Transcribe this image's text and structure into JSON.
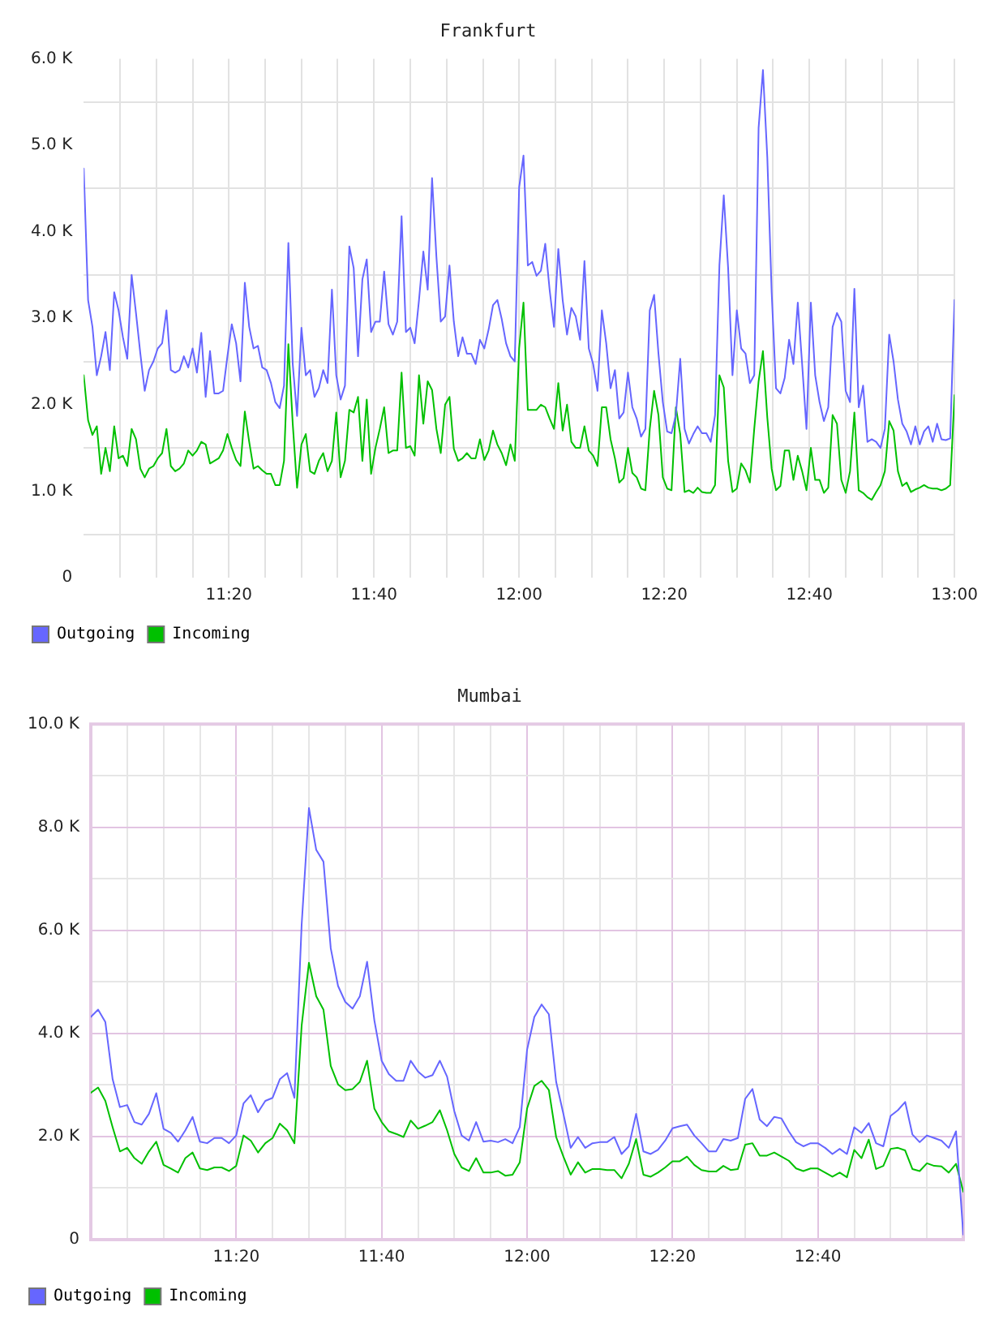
{
  "chart_data": [
    {
      "type": "line",
      "title": "Frankfurt",
      "legend": "bottom left",
      "grid": true,
      "marker": "none",
      "line_style": "solid",
      "xlim": [
        11,
        13
      ],
      "ylim": [
        0,
        6000
      ],
      "xticks": [
        {
          "value": 11.0833,
          "label": null
        },
        {
          "value": 11.1667,
          "label": null
        },
        {
          "value": 11.25,
          "label": null
        },
        {
          "value": 11.3333,
          "label": "11:20"
        },
        {
          "value": 11.4167,
          "label": null
        },
        {
          "value": 11.5,
          "label": null
        },
        {
          "value": 11.5833,
          "label": null
        },
        {
          "value": 11.6667,
          "label": "11:40"
        },
        {
          "value": 11.75,
          "label": null
        },
        {
          "value": 11.8333,
          "label": null
        },
        {
          "value": 11.9167,
          "label": null
        },
        {
          "value": 12,
          "label": "12:00"
        },
        {
          "value": 12.0833,
          "label": null
        },
        {
          "value": 12.1667,
          "label": null
        },
        {
          "value": 12.25,
          "label": null
        },
        {
          "value": 12.3333,
          "label": "12:20"
        },
        {
          "value": 12.4167,
          "label": null
        },
        {
          "value": 12.5,
          "label": null
        },
        {
          "value": 12.5833,
          "label": null
        },
        {
          "value": 12.6667,
          "label": "12:40"
        },
        {
          "value": 12.75,
          "label": null
        },
        {
          "value": 12.8333,
          "label": null
        },
        {
          "value": 12.9167,
          "label": null
        },
        {
          "value": 13,
          "label": "13:00"
        }
      ],
      "yticks": [
        0,
        {
          "value": 500,
          "label": null
        },
        {
          "value": 1000,
          "label": "1.0 K"
        },
        {
          "value": 1500,
          "label": null
        },
        {
          "value": 2000,
          "label": "2.0 K"
        },
        {
          "value": 2500,
          "label": null
        },
        {
          "value": 3000,
          "label": "3.0 K"
        },
        {
          "value": 3500,
          "label": null
        },
        {
          "value": 4000,
          "label": "4.0 K"
        },
        {
          "value": 4500,
          "label": null
        },
        {
          "value": 5000,
          "label": "5.0 K"
        },
        {
          "value": 5500,
          "label": null
        },
        {
          "value": 6000,
          "label": "6.0 K"
        }
      ],
      "x": [
        11,
        11.01,
        11.02,
        11.03,
        11.04,
        11.05,
        11.06,
        11.07,
        11.08,
        11.09,
        11.1,
        11.11,
        11.12,
        11.13,
        11.14,
        11.15,
        11.16,
        11.17,
        11.18,
        11.19,
        11.2,
        11.21,
        11.22,
        11.23,
        11.24,
        11.25,
        11.26,
        11.27,
        11.28,
        11.29,
        11.3,
        11.31,
        11.32,
        11.33,
        11.34,
        11.35,
        11.36,
        11.37,
        11.38,
        11.39,
        11.4,
        11.41,
        11.42,
        11.43,
        11.44,
        11.45,
        11.46,
        11.47,
        11.48,
        11.49,
        11.5,
        11.51,
        11.52,
        11.53,
        11.54,
        11.55,
        11.56,
        11.57,
        11.58,
        11.59,
        11.6,
        11.61,
        11.62,
        11.63,
        11.64,
        11.65,
        11.66,
        11.67,
        11.68,
        11.69,
        11.7,
        11.71,
        11.72,
        11.73,
        11.74,
        11.75,
        11.76,
        11.77,
        11.78,
        11.79,
        11.8,
        11.81,
        11.82,
        11.83,
        11.84,
        11.85,
        11.86,
        11.87,
        11.88,
        11.89,
        11.9,
        11.91,
        11.92,
        11.93,
        11.94,
        11.95,
        11.96,
        11.97,
        11.98,
        11.99,
        12,
        12.01,
        12.02,
        12.03,
        12.04,
        12.05,
        12.06,
        12.07,
        12.08,
        12.09,
        12.1,
        12.11,
        12.12,
        12.13,
        12.14,
        12.15,
        12.16,
        12.17,
        12.18,
        12.19,
        12.2,
        12.21,
        12.22,
        12.23,
        12.24,
        12.25,
        12.26,
        12.27,
        12.28,
        12.29,
        12.3,
        12.31,
        12.32,
        12.33,
        12.34,
        12.35,
        12.36,
        12.37,
        12.38,
        12.39,
        12.4,
        12.41,
        12.42,
        12.43,
        12.44,
        12.45,
        12.46,
        12.47,
        12.48,
        12.49,
        12.5,
        12.51,
        12.52,
        12.53,
        12.54,
        12.55,
        12.56,
        12.57,
        12.58,
        12.59,
        12.6,
        12.61,
        12.62,
        12.63,
        12.64,
        12.65,
        12.66,
        12.67,
        12.68,
        12.69,
        12.7,
        12.71,
        12.72,
        12.73,
        12.74,
        12.75,
        12.76,
        12.77,
        12.78,
        12.79,
        12.8,
        12.81,
        12.82,
        12.83,
        12.84,
        12.85,
        12.86,
        12.87,
        12.88,
        12.89,
        12.9,
        12.91,
        12.92,
        12.93,
        12.94,
        12.95,
        12.96,
        12.97,
        12.98,
        12.99,
        13
      ],
      "series": [
        {
          "name": "Outgoing",
          "color": "#6666ff",
          "values": [
            4730,
            3210,
            2900,
            2340,
            2560,
            2840,
            2400,
            3300,
            3090,
            2780,
            2530,
            3500,
            3060,
            2590,
            2160,
            2400,
            2500,
            2650,
            2710,
            3090,
            2400,
            2370,
            2400,
            2560,
            2430,
            2650,
            2370,
            2830,
            2090,
            2620,
            2130,
            2130,
            2160,
            2560,
            2930,
            2710,
            2270,
            3410,
            2900,
            2650,
            2680,
            2430,
            2400,
            2250,
            2030,
            1960,
            2220,
            3870,
            2470,
            1870,
            2890,
            2340,
            2400,
            2090,
            2190,
            2400,
            2250,
            3330,
            2340,
            2060,
            2220,
            3830,
            3580,
            2560,
            3450,
            3680,
            2840,
            2960,
            2960,
            3540,
            2930,
            2810,
            2960,
            4180,
            2840,
            2890,
            2710,
            3210,
            3770,
            3330,
            4620,
            3710,
            2960,
            3020,
            3610,
            2960,
            2560,
            2780,
            2590,
            2590,
            2470,
            2750,
            2650,
            2870,
            3150,
            3210,
            2990,
            2710,
            2560,
            2500,
            4510,
            4880,
            3610,
            3650,
            3490,
            3550,
            3860,
            3330,
            2900,
            3800,
            3210,
            2810,
            3120,
            3020,
            2750,
            3660,
            2650,
            2470,
            2160,
            3090,
            2710,
            2190,
            2400,
            1840,
            1910,
            2370,
            1970,
            1840,
            1630,
            1720,
            3090,
            3270,
            2590,
            2030,
            1690,
            1670,
            1880,
            2530,
            1720,
            1550,
            1660,
            1750,
            1670,
            1670,
            1570,
            1880,
            3610,
            4420,
            3580,
            2340,
            3090,
            2650,
            2590,
            2250,
            2340,
            5200,
            5870,
            4860,
            3300,
            2190,
            2130,
            2310,
            2750,
            2470,
            3180,
            2470,
            1720,
            3180,
            2340,
            2030,
            1810,
            1970,
            2900,
            3060,
            2960,
            2160,
            2030,
            3340,
            1970,
            2220,
            1570,
            1600,
            1570,
            1500,
            1720,
            2810,
            2500,
            2060,
            1780,
            1690,
            1540,
            1750,
            1540,
            1690,
            1750,
            1570,
            1780,
            1600,
            1590,
            1610,
            3210
          ]
        },
        {
          "name": "Incoming",
          "color": "#00c000",
          "values": [
            2340,
            1820,
            1650,
            1750,
            1200,
            1500,
            1230,
            1750,
            1380,
            1410,
            1290,
            1720,
            1600,
            1260,
            1160,
            1260,
            1290,
            1380,
            1440,
            1720,
            1290,
            1230,
            1260,
            1320,
            1470,
            1410,
            1470,
            1570,
            1540,
            1320,
            1350,
            1380,
            1470,
            1660,
            1500,
            1360,
            1290,
            1920,
            1570,
            1260,
            1290,
            1240,
            1200,
            1200,
            1070,
            1070,
            1350,
            2700,
            1780,
            1040,
            1540,
            1660,
            1230,
            1200,
            1350,
            1440,
            1230,
            1350,
            1910,
            1160,
            1350,
            1940,
            1910,
            2090,
            1350,
            2060,
            1200,
            1500,
            1720,
            1970,
            1440,
            1470,
            1470,
            2370,
            1500,
            1520,
            1410,
            2340,
            1780,
            2270,
            2170,
            1720,
            1440,
            2000,
            2090,
            1490,
            1350,
            1380,
            1440,
            1380,
            1380,
            1600,
            1360,
            1470,
            1700,
            1540,
            1440,
            1300,
            1540,
            1350,
            2650,
            3180,
            1940,
            1940,
            1940,
            2000,
            1970,
            1840,
            1720,
            2250,
            1700,
            2000,
            1570,
            1500,
            1500,
            1750,
            1470,
            1410,
            1290,
            1970,
            1970,
            1600,
            1380,
            1100,
            1150,
            1500,
            1210,
            1160,
            1030,
            1010,
            1720,
            2160,
            1880,
            1160,
            1030,
            1010,
            1970,
            1660,
            990,
            1010,
            980,
            1040,
            990,
            980,
            980,
            1070,
            2340,
            2200,
            1350,
            990,
            1030,
            1320,
            1240,
            1100,
            1720,
            2270,
            2620,
            1850,
            1260,
            1010,
            1060,
            1470,
            1470,
            1130,
            1410,
            1230,
            1010,
            1500,
            1130,
            1130,
            980,
            1040,
            1880,
            1780,
            1130,
            980,
            1230,
            1910,
            1010,
            980,
            930,
            900,
            990,
            1070,
            1230,
            1810,
            1700,
            1230,
            1060,
            1100,
            990,
            1020,
            1040,
            1070,
            1040,
            1030,
            1030,
            1010,
            1030,
            1070,
            2110
          ]
        }
      ]
    },
    {
      "type": "line",
      "title": "Mumbai",
      "legend": "bottom left",
      "grid": true,
      "marker": "none",
      "line_style": "solid",
      "xlim": [
        11,
        13
      ],
      "ylim": [
        0,
        10000
      ],
      "xticks": [
        {
          "value": 11.0833,
          "label": null
        },
        {
          "value": 11.1667,
          "label": null
        },
        {
          "value": 11.25,
          "label": null
        },
        {
          "value": 11.3333,
          "label": "11:20"
        },
        {
          "value": 11.4167,
          "label": null
        },
        {
          "value": 11.5,
          "label": null
        },
        {
          "value": 11.5833,
          "label": null
        },
        {
          "value": 11.6667,
          "label": "11:40"
        },
        {
          "value": 11.75,
          "label": null
        },
        {
          "value": 11.8333,
          "label": null
        },
        {
          "value": 11.9167,
          "label": null
        },
        {
          "value": 12,
          "label": "12:00"
        },
        {
          "value": 12.0833,
          "label": null
        },
        {
          "value": 12.1667,
          "label": null
        },
        {
          "value": 12.25,
          "label": null
        },
        {
          "value": 12.3333,
          "label": "12:20"
        },
        {
          "value": 12.4167,
          "label": null
        },
        {
          "value": 12.5,
          "label": null
        },
        {
          "value": 12.5833,
          "label": null
        },
        {
          "value": 12.6667,
          "label": "12:40"
        },
        {
          "value": 12.75,
          "label": null
        },
        {
          "value": 12.8333,
          "label": null
        },
        {
          "value": 12.9167,
          "label": null
        }
      ],
      "yticks": [
        0,
        {
          "value": 1000,
          "label": null
        },
        {
          "value": 2000,
          "label": "2.0 K"
        },
        {
          "value": 3000,
          "label": null
        },
        {
          "value": 4000,
          "label": "4.0 K"
        },
        {
          "value": 5000,
          "label": null
        },
        {
          "value": 6000,
          "label": "6.0 K"
        },
        {
          "value": 7000,
          "label": null
        },
        {
          "value": 8000,
          "label": "8.0 K"
        },
        {
          "value": 9000,
          "label": null
        },
        {
          "value": 10000,
          "label": "10.0 K"
        }
      ],
      "x": [
        11,
        11.0167,
        11.0333,
        11.05,
        11.0667,
        11.0833,
        11.1,
        11.1167,
        11.1333,
        11.15,
        11.1667,
        11.1833,
        11.2,
        11.2167,
        11.2333,
        11.25,
        11.2667,
        11.2833,
        11.3,
        11.3167,
        11.3333,
        11.35,
        11.3667,
        11.3833,
        11.4,
        11.4167,
        11.4333,
        11.45,
        11.4667,
        11.4833,
        11.5,
        11.5167,
        11.5333,
        11.55,
        11.5667,
        11.5833,
        11.6,
        11.6167,
        11.6333,
        11.65,
        11.6667,
        11.6833,
        11.7,
        11.7167,
        11.7333,
        11.75,
        11.7667,
        11.7833,
        11.8,
        11.8167,
        11.8333,
        11.85,
        11.8667,
        11.8833,
        11.9,
        11.9167,
        11.9333,
        11.95,
        11.9667,
        11.9833,
        12,
        12.0167,
        12.0333,
        12.05,
        12.0667,
        12.0833,
        12.1,
        12.1167,
        12.1333,
        12.15,
        12.1667,
        12.1833,
        12.2,
        12.2167,
        12.2333,
        12.25,
        12.2667,
        12.2833,
        12.3,
        12.3167,
        12.3333,
        12.35,
        12.3667,
        12.3833,
        12.4,
        12.4167,
        12.4333,
        12.45,
        12.4667,
        12.4833,
        12.5,
        12.5167,
        12.5333,
        12.55,
        12.5667,
        12.5833,
        12.6,
        12.6167,
        12.6333,
        12.65,
        12.6667,
        12.6833,
        12.7,
        12.7167,
        12.7333,
        12.75,
        12.7667,
        12.7833,
        12.8,
        12.8167,
        12.8333,
        12.85,
        12.8667,
        12.8833,
        12.9,
        12.9167,
        12.9333,
        12.95,
        12.9667,
        12.9833,
        13
      ],
      "series": [
        {
          "name": "Outgoing",
          "color": "#6666ff",
          "values": [
            4320,
            4460,
            4220,
            3110,
            2570,
            2610,
            2280,
            2230,
            2440,
            2840,
            2150,
            2070,
            1900,
            2120,
            2380,
            1900,
            1870,
            1970,
            1970,
            1870,
            2020,
            2640,
            2800,
            2470,
            2690,
            2750,
            3110,
            3230,
            2750,
            6110,
            8370,
            7560,
            7330,
            5650,
            4920,
            4610,
            4480,
            4720,
            5390,
            4250,
            3470,
            3210,
            3080,
            3080,
            3470,
            3260,
            3140,
            3190,
            3470,
            3160,
            2490,
            2020,
            1920,
            2280,
            1900,
            1920,
            1890,
            1950,
            1870,
            2180,
            3680,
            4320,
            4560,
            4370,
            3060,
            2440,
            1780,
            1990,
            1780,
            1870,
            1890,
            1890,
            1990,
            1660,
            1810,
            2440,
            1710,
            1660,
            1740,
            1920,
            2160,
            2200,
            2230,
            2020,
            1870,
            1710,
            1710,
            1950,
            1920,
            1970,
            2730,
            2920,
            2330,
            2200,
            2380,
            2350,
            2100,
            1890,
            1810,
            1870,
            1870,
            1780,
            1660,
            1760,
            1660,
            2180,
            2070,
            2260,
            1870,
            1810,
            2400,
            2510,
            2670,
            2040,
            1890,
            2020,
            1970,
            1920,
            1780,
            2100,
            100
          ]
        },
        {
          "name": "Incoming",
          "color": "#00c000",
          "values": [
            2850,
            2950,
            2690,
            2180,
            1710,
            1780,
            1580,
            1470,
            1710,
            1900,
            1450,
            1380,
            1300,
            1580,
            1690,
            1380,
            1350,
            1400,
            1400,
            1330,
            1430,
            2020,
            1920,
            1690,
            1870,
            1970,
            2250,
            2120,
            1870,
            4150,
            5370,
            4720,
            4460,
            3370,
            3010,
            2900,
            2920,
            3060,
            3470,
            2540,
            2280,
            2100,
            2050,
            1990,
            2310,
            2150,
            2210,
            2280,
            2510,
            2120,
            1660,
            1400,
            1330,
            1580,
            1300,
            1300,
            1330,
            1240,
            1260,
            1500,
            2540,
            2980,
            3080,
            2900,
            1990,
            1610,
            1260,
            1500,
            1300,
            1370,
            1370,
            1350,
            1350,
            1190,
            1470,
            1950,
            1260,
            1220,
            1300,
            1400,
            1520,
            1520,
            1610,
            1450,
            1350,
            1320,
            1320,
            1430,
            1350,
            1370,
            1840,
            1870,
            1630,
            1630,
            1690,
            1610,
            1530,
            1380,
            1330,
            1380,
            1380,
            1300,
            1220,
            1300,
            1210,
            1740,
            1580,
            1940,
            1370,
            1430,
            1760,
            1780,
            1730,
            1370,
            1330,
            1480,
            1430,
            1420,
            1300,
            1470,
            930
          ]
        }
      ]
    }
  ]
}
